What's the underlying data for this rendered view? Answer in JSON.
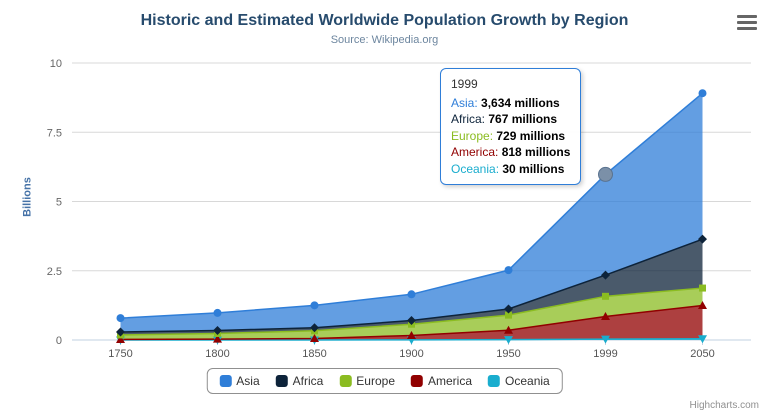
{
  "chart": {
    "title": "Historic and Estimated Worldwide Population Growth by Region",
    "subtitle": "Source: Wikipedia.org",
    "y_axis_title": "Billions",
    "credits": "Highcharts.com",
    "title_color": "#274b6d",
    "subtitle_color": "#6d869f",
    "y_axis_title_color": "#4572a7"
  },
  "tooltip": {
    "header": "1999",
    "border_color": "#2f7ed8",
    "rows": [
      {
        "label": "Asia",
        "value": "3,634 millions",
        "color": "#2f7ed8"
      },
      {
        "label": "Africa",
        "value": "767 millions",
        "color": "#0d233a"
      },
      {
        "label": "Europe",
        "value": "729 millions",
        "color": "#8bbc21"
      },
      {
        "label": "America",
        "value": "818 millions",
        "color": "#910000"
      },
      {
        "label": "Oceania",
        "value": "30 millions",
        "color": "#1aadce"
      }
    ]
  },
  "legend": {
    "items": [
      {
        "label": "Asia",
        "color": "#2f7ed8"
      },
      {
        "label": "Africa",
        "color": "#0d233a"
      },
      {
        "label": "Europe",
        "color": "#8bbc21"
      },
      {
        "label": "America",
        "color": "#910000"
      },
      {
        "label": "Oceania",
        "color": "#1aadce"
      }
    ]
  },
  "chart_data": {
    "type": "area",
    "stacked": true,
    "title": "Historic and Estimated Worldwide Population Growth by Region",
    "subtitle": "Source: Wikipedia.org",
    "xlabel": "",
    "ylabel": "Billions",
    "categories": [
      "1750",
      "1800",
      "1850",
      "1900",
      "1950",
      "1999",
      "2050"
    ],
    "y_ticks": [
      0,
      2.5,
      5,
      7.5,
      10
    ],
    "ylim": [
      0,
      10
    ],
    "grid": true,
    "legend_position": "bottom",
    "values_unit": "millions",
    "axis_unit": "billions",
    "series": [
      {
        "name": "Asia",
        "color": "#2f7ed8",
        "marker": "circle",
        "values_millions": [
          502,
          635,
          809,
          947,
          1402,
          3634,
          5268
        ]
      },
      {
        "name": "Africa",
        "color": "#0d233a",
        "marker": "diamond",
        "values_millions": [
          106,
          107,
          111,
          133,
          221,
          767,
          1766
        ]
      },
      {
        "name": "Europe",
        "color": "#8bbc21",
        "marker": "square",
        "values_millions": [
          163,
          203,
          276,
          408,
          547,
          729,
          628
        ]
      },
      {
        "name": "America",
        "color": "#910000",
        "marker": "triangle",
        "values_millions": [
          18,
          31,
          54,
          156,
          339,
          818,
          1201
        ]
      },
      {
        "name": "Oceania",
        "color": "#1aadce",
        "marker": "triangle-down",
        "values_millions": [
          2,
          2,
          2,
          6,
          13,
          30,
          46
        ]
      }
    ],
    "stack_order_bottom_to_top": [
      "Oceania",
      "America",
      "Europe",
      "Africa",
      "Asia"
    ],
    "highlighted_point": {
      "category": "1999",
      "series": "Asia",
      "stacked_total_billions": 5.978
    }
  }
}
